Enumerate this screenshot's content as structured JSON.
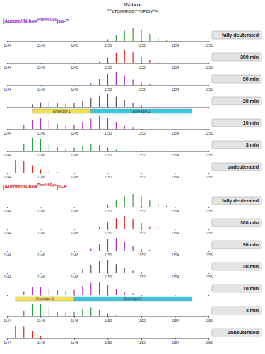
{
  "header": {
    "title": "IN-box",
    "subtitle": "⁸⁰⁷LTQMIRQGYYKPIDV⁸²¹"
  },
  "sections": [
    {
      "label": "[Aurora/IN-box",
      "superscript": "Phe945Cys",
      "suffix": "]so-P",
      "color": "#8b2fc9"
    },
    {
      "label": "[Aurora/IN-box",
      "superscript": "Phe945Cys",
      "suffix": "]sl-P",
      "color": "#e0202a"
    }
  ],
  "chart_data": [
    {
      "type": "bar",
      "title": "fully deuterated",
      "color": "#3a9a3a",
      "x": [
        1150.0,
        1150.5,
        1151.0,
        1151.5,
        1152.0,
        1152.5,
        1153.0,
        1153.5
      ],
      "values": [
        15,
        45,
        80,
        100,
        85,
        55,
        25,
        10
      ],
      "xlim": [
        1144,
        1156
      ],
      "xticks": [
        1144,
        1146,
        1148,
        1150,
        1152,
        1154,
        1156
      ],
      "ylim": [
        0,
        100
      ],
      "tick_labels": "x"
    },
    {
      "type": "bar",
      "title": "300 min",
      "color": "#e02020",
      "x": [
        1149.5,
        1150.0,
        1150.5,
        1151.0,
        1151.5,
        1152.0,
        1152.5,
        1153.0
      ],
      "values": [
        12,
        40,
        78,
        100,
        82,
        50,
        22,
        8
      ],
      "xlim": [
        1144,
        1156
      ],
      "xticks": [
        1144,
        1146,
        1148,
        1150,
        1152,
        1154,
        1156
      ],
      "ylim": [
        0,
        100
      ],
      "tick_labels": "x"
    },
    {
      "type": "bar",
      "title": "90 min",
      "color": "#9b30c0",
      "x": [
        1149.0,
        1149.5,
        1150.0,
        1150.5,
        1151.0,
        1151.5,
        1152.0,
        1152.5
      ],
      "values": [
        15,
        45,
        85,
        100,
        75,
        42,
        18,
        6
      ],
      "xlim": [
        1144,
        1156
      ],
      "xticks": [
        1144,
        1146,
        1148,
        1150,
        1152,
        1154,
        1156
      ],
      "ylim": [
        0,
        100
      ],
      "tick_labels": "x"
    },
    {
      "type": "bar",
      "title": "30 min",
      "color": "#555555",
      "x": [
        1145.5,
        1146.0,
        1146.5,
        1147.0,
        1147.5,
        1148.0,
        1148.5,
        1149.0,
        1149.5,
        1150.0,
        1150.5,
        1151.0,
        1151.5,
        1152.0
      ],
      "values": [
        20,
        35,
        40,
        32,
        25,
        30,
        45,
        70,
        90,
        100,
        80,
        55,
        30,
        12
      ],
      "xlim": [
        1144,
        1156
      ],
      "xticks": [
        1144,
        1146,
        1148,
        1150,
        1152,
        1154,
        1156
      ],
      "ylim": [
        0,
        100
      ],
      "tick_labels": false,
      "annotations": [
        {
          "text": "Envelope 1",
          "x": [
            1145.5,
            1149.0
          ],
          "color": "#f2e34c"
        },
        {
          "text": "Envelope 2",
          "x": [
            1149.0,
            1155.0
          ],
          "color": "#35c9e0"
        }
      ]
    },
    {
      "type": "bar",
      "title": "10 min",
      "color": "#b030b0",
      "x": [
        1145.0,
        1145.5,
        1146.0,
        1146.5,
        1147.0,
        1147.5,
        1148.0,
        1148.5,
        1149.0,
        1149.5,
        1150.0,
        1150.5,
        1151.0,
        1151.5
      ],
      "values": [
        30,
        70,
        85,
        65,
        40,
        25,
        30,
        50,
        80,
        100,
        85,
        55,
        25,
        10
      ],
      "xlim": [
        1144,
        1156
      ],
      "xticks": [
        1144,
        1146,
        1148,
        1150,
        1152,
        1154,
        1156
      ],
      "ylim": [
        0,
        100
      ],
      "tick_labels": "x"
    },
    {
      "type": "bar",
      "title": "3 min",
      "color": "#20a040",
      "x": [
        1145.0,
        1145.5,
        1146.0,
        1146.5,
        1147.0,
        1147.5,
        1148.0,
        1148.5,
        1149.0,
        1149.5,
        1150.0,
        1150.5
      ],
      "values": [
        55,
        100,
        90,
        60,
        30,
        20,
        25,
        40,
        55,
        45,
        25,
        10
      ],
      "xlim": [
        1144,
        1156
      ],
      "xticks": [
        1144,
        1146,
        1148,
        1150,
        1152,
        1154,
        1156
      ],
      "ylim": [
        0,
        100
      ],
      "tick_labels": "x"
    },
    {
      "type": "bar",
      "title": "undeuterated",
      "color": "#e02020",
      "x": [
        1144.5,
        1145.0,
        1145.5,
        1146.0,
        1146.5,
        1147.0
      ],
      "values": [
        100,
        95,
        58,
        25,
        10,
        4
      ],
      "xlim": [
        1144,
        1156
      ],
      "xticks": [
        1144,
        1146,
        1148,
        1150,
        1152,
        1154,
        1156
      ],
      "ylim": [
        0,
        100
      ],
      "tick_labels": "x"
    },
    {
      "type": "bar",
      "title": "fully deuterated",
      "color": "#3a9a3a",
      "x": [
        1150.0,
        1150.5,
        1151.0,
        1151.5,
        1152.0,
        1152.5,
        1153.0,
        1153.5
      ],
      "values": [
        18,
        50,
        85,
        100,
        80,
        50,
        22,
        8
      ],
      "xlim": [
        1144,
        1156
      ],
      "xticks": [
        1144,
        1146,
        1148,
        1150,
        1152,
        1154,
        1156
      ],
      "ylim": [
        0,
        100
      ],
      "tick_labels": "x"
    },
    {
      "type": "bar",
      "title": "300 min",
      "color": "#e02020",
      "x": [
        1149.5,
        1150.0,
        1150.5,
        1151.0,
        1151.5,
        1152.0,
        1152.5,
        1153.0
      ],
      "values": [
        15,
        48,
        82,
        100,
        78,
        45,
        20,
        7
      ],
      "xlim": [
        1144,
        1156
      ],
      "xticks": [
        1144,
        1146,
        1148,
        1150,
        1152,
        1154,
        1156
      ],
      "ylim": [
        0,
        100
      ],
      "tick_labels": "x"
    },
    {
      "type": "bar",
      "title": "90 min",
      "color": "#9b30c0",
      "x": [
        1149.0,
        1149.5,
        1150.0,
        1150.5,
        1151.0,
        1151.5,
        1152.0,
        1152.5
      ],
      "values": [
        20,
        55,
        90,
        100,
        70,
        38,
        15,
        5
      ],
      "xlim": [
        1144,
        1156
      ],
      "xticks": [
        1144,
        1146,
        1148,
        1150,
        1152,
        1154,
        1156
      ],
      "ylim": [
        0,
        100
      ],
      "tick_labels": "x"
    },
    {
      "type": "bar",
      "title": "30 min",
      "color": "#555555",
      "x": [
        1148.5,
        1149.0,
        1149.5,
        1150.0,
        1150.5,
        1151.0,
        1151.5,
        1152.0
      ],
      "values": [
        25,
        60,
        95,
        100,
        65,
        35,
        14,
        5
      ],
      "xlim": [
        1144,
        1156
      ],
      "xticks": [
        1144,
        1146,
        1148,
        1150,
        1152,
        1154,
        1156
      ],
      "ylim": [
        0,
        100
      ],
      "tick_labels": "x"
    },
    {
      "type": "bar",
      "title": "10 min",
      "color": "#b030b0",
      "x": [
        1145.0,
        1145.5,
        1146.0,
        1146.5,
        1147.0,
        1147.5,
        1148.0,
        1148.5,
        1149.0,
        1149.5,
        1150.0,
        1150.5,
        1151.0,
        1151.5
      ],
      "values": [
        25,
        55,
        60,
        45,
        30,
        28,
        40,
        65,
        90,
        100,
        75,
        45,
        20,
        8
      ],
      "xlim": [
        1144,
        1156
      ],
      "xticks": [
        1144,
        1146,
        1148,
        1150,
        1152,
        1154,
        1156
      ],
      "ylim": [
        0,
        100
      ],
      "tick_labels": false,
      "annotations": [
        {
          "text": "Envelope 1",
          "x": [
            1144.5,
            1148.0
          ],
          "color": "#f2e34c"
        },
        {
          "text": "Envelope 2",
          "x": [
            1148.0,
            1155.0
          ],
          "color": "#35c9e0"
        }
      ]
    },
    {
      "type": "bar",
      "title": "3 min",
      "color": "#20a040",
      "x": [
        1145.0,
        1145.5,
        1146.0,
        1146.5,
        1147.0,
        1147.5,
        1148.0,
        1148.5,
        1149.0,
        1149.5,
        1150.0,
        1150.5
      ],
      "values": [
        45,
        95,
        100,
        70,
        40,
        30,
        40,
        60,
        70,
        50,
        25,
        10
      ],
      "xlim": [
        1144,
        1156
      ],
      "xticks": [
        1144,
        1146,
        1148,
        1150,
        1152,
        1154,
        1156
      ],
      "ylim": [
        0,
        100
      ],
      "tick_labels": "x"
    },
    {
      "type": "bar",
      "title": "undeuterated",
      "color": "#e02020",
      "x": [
        1144.5,
        1145.0,
        1145.5,
        1146.0,
        1146.5,
        1147.0
      ],
      "values": [
        100,
        92,
        55,
        22,
        9,
        3
      ],
      "xlim": [
        1144,
        1156
      ],
      "xticks": [
        1144,
        1146,
        1148,
        1150,
        1152,
        1154,
        1156
      ],
      "ylim": [
        0,
        100
      ],
      "tick_labels": "x"
    }
  ]
}
